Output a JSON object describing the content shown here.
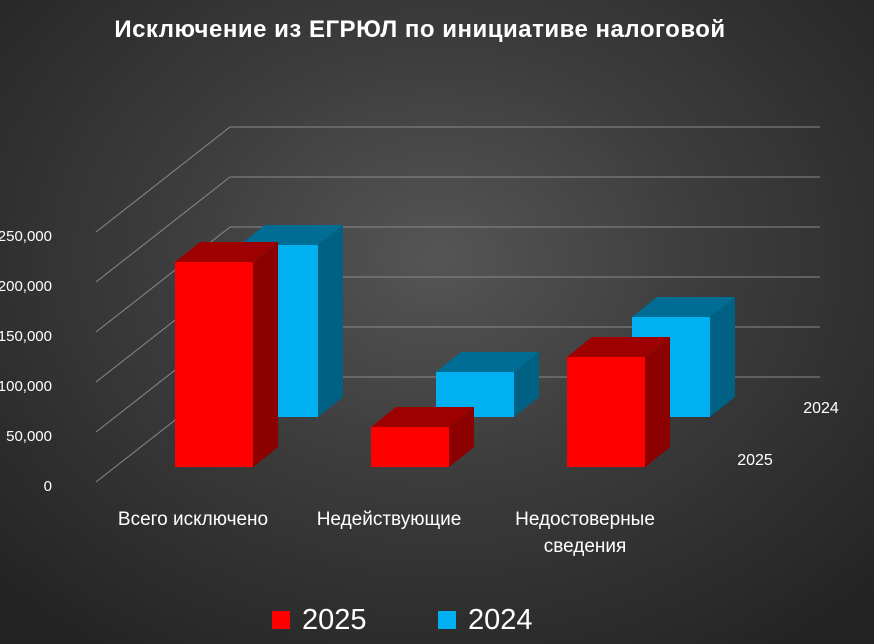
{
  "chart_data": {
    "type": "bar",
    "title": "Исключение из ЕГРЮЛ по инициативе налоговой",
    "categories": [
      "Всего исключено",
      "Недействующие",
      "Недостоверные сведения"
    ],
    "category_lines": [
      [
        "Всего исключено"
      ],
      [
        "Недействующие"
      ],
      [
        "Недостоверные",
        "сведения"
      ]
    ],
    "series": [
      {
        "name": "2025",
        "values": [
          205000,
          40000,
          110000
        ],
        "color": "#ff0000"
      },
      {
        "name": "2024",
        "values": [
          172000,
          45000,
          100000
        ],
        "color": "#00b0f0"
      }
    ],
    "depth_labels": [
      "2025",
      "2024"
    ],
    "yticks": [
      "0",
      "50,000",
      "100,000",
      "150,000",
      "200,000",
      "250,000"
    ],
    "ylim": [
      0,
      250000
    ],
    "grid": true,
    "legend_position": "bottom"
  }
}
